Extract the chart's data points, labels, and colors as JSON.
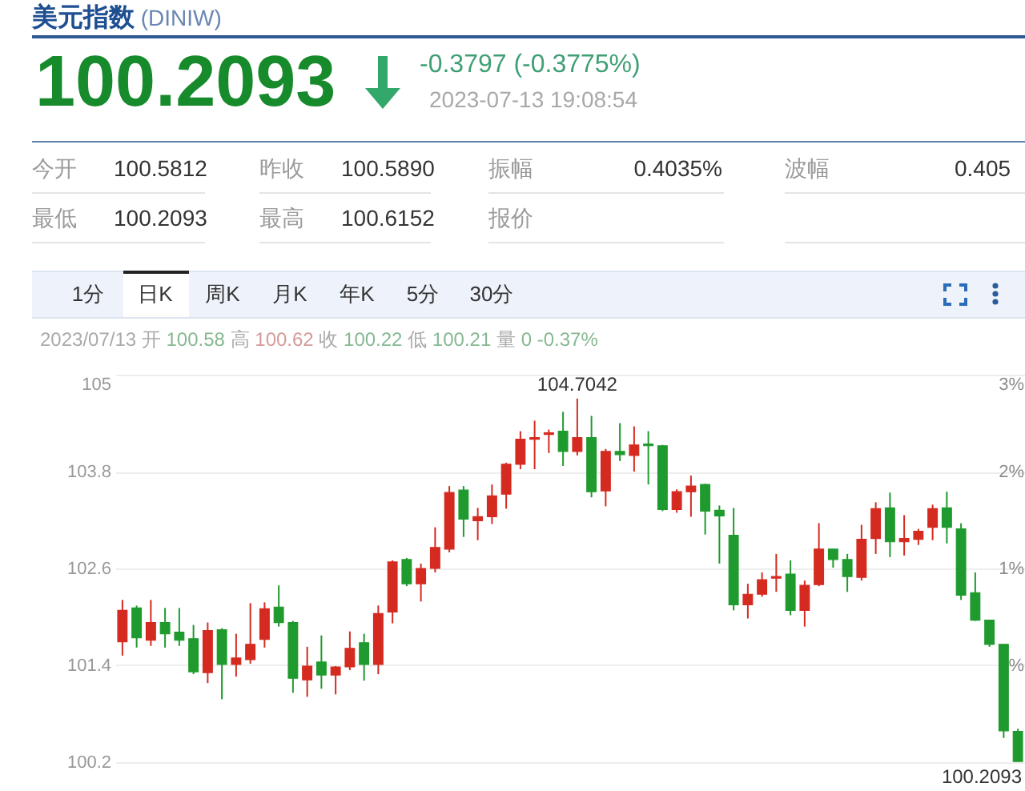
{
  "chart_data": {
    "type": "candlestick",
    "title": "美元指数 (DINIW)",
    "annotations": [
      "100.2093",
      "-0.3797 (-0.3775%)",
      "2023-07-13 19:08:54",
      "今开",
      "100.5812",
      "昨收",
      "100.5890",
      "振幅",
      "0.4035%",
      "波幅",
      "0.405",
      "最低",
      "100.2093",
      "最高",
      "100.6152",
      "报价",
      "1分",
      "日K",
      "周K",
      "月K",
      "年K",
      "5分",
      "30分",
      "2023/07/13 开 100.58 高 100.62 收 100.22 低 100.21 量 0 -0.37%",
      "100.2093",
      {
        "text": "104.7042",
        "y": 104.7042
      }
    ],
    "categories": [
      null,
      null,
      null,
      null,
      null,
      null,
      null,
      null,
      null,
      null,
      null,
      null,
      null,
      null,
      null,
      null,
      null,
      null,
      null,
      null,
      null,
      null,
      null,
      null,
      null,
      null,
      null,
      null,
      null,
      null,
      null,
      null,
      null,
      null,
      null,
      null,
      null,
      null,
      null,
      null,
      null,
      null,
      null,
      null,
      null,
      null,
      null,
      null,
      null,
      null,
      null,
      null,
      null,
      null,
      null,
      null,
      null,
      null,
      null,
      null,
      null,
      null,
      null,
      null
    ],
    "ohlc": [
      [
        101.69,
        102.21,
        101.52,
        102.08
      ],
      [
        102.11,
        102.14,
        101.62,
        101.74
      ],
      [
        101.71,
        102.21,
        101.64,
        101.93
      ],
      [
        101.93,
        102.11,
        101.62,
        101.79
      ],
      [
        101.81,
        102.11,
        101.64,
        101.71
      ],
      [
        101.73,
        101.9,
        101.29,
        101.32
      ],
      [
        101.31,
        101.93,
        101.18,
        101.83
      ],
      [
        101.84,
        101.86,
        100.98,
        101.41
      ],
      [
        101.41,
        101.79,
        101.26,
        101.49
      ],
      [
        101.47,
        102.17,
        101.42,
        101.66
      ],
      [
        101.72,
        102.18,
        101.62,
        102.1
      ],
      [
        102.12,
        102.39,
        101.88,
        101.93
      ],
      [
        101.93,
        101.95,
        101.06,
        101.24
      ],
      [
        101.22,
        101.63,
        101.01,
        101.39
      ],
      [
        101.44,
        101.77,
        101.11,
        101.28
      ],
      [
        101.28,
        101.39,
        101.04,
        101.38
      ],
      [
        101.38,
        101.82,
        101.34,
        101.61
      ],
      [
        101.68,
        101.79,
        101.21,
        101.41
      ],
      [
        101.41,
        102.14,
        101.29,
        102.04
      ],
      [
        102.06,
        102.7,
        101.92,
        102.68
      ],
      [
        102.71,
        102.73,
        102.38,
        102.41
      ],
      [
        102.41,
        102.66,
        102.19,
        102.6
      ],
      [
        102.6,
        103.11,
        102.55,
        102.86
      ],
      [
        102.84,
        103.62,
        102.8,
        103.54
      ],
      [
        103.57,
        103.62,
        102.99,
        103.21
      ],
      [
        103.19,
        103.35,
        102.95,
        103.24
      ],
      [
        103.24,
        103.64,
        103.15,
        103.5
      ],
      [
        103.52,
        103.91,
        103.34,
        103.89
      ],
      [
        103.89,
        104.3,
        103.83,
        104.2
      ],
      [
        104.2,
        104.43,
        103.83,
        104.22
      ],
      [
        104.26,
        104.32,
        104.03,
        104.28
      ],
      [
        104.3,
        104.54,
        103.87,
        104.05
      ],
      [
        104.05,
        104.7042,
        104.0,
        104.22
      ],
      [
        104.22,
        104.49,
        103.48,
        103.55
      ],
      [
        103.56,
        104.08,
        103.37,
        104.05
      ],
      [
        104.05,
        104.4,
        103.93,
        104.01
      ],
      [
        104.0,
        104.36,
        103.8,
        104.13
      ],
      [
        104.14,
        104.3,
        103.64,
        104.12
      ],
      [
        104.12,
        104.13,
        103.31,
        103.33
      ],
      [
        103.33,
        103.58,
        103.29,
        103.55
      ],
      [
        103.55,
        103.75,
        103.24,
        103.62
      ],
      [
        103.64,
        103.65,
        103.02,
        103.31
      ],
      [
        103.32,
        103.38,
        102.66,
        103.25
      ],
      [
        103.01,
        103.35,
        102.08,
        102.15
      ],
      [
        102.15,
        102.41,
        101.98,
        102.28
      ],
      [
        102.28,
        102.55,
        102.25,
        102.46
      ],
      [
        102.48,
        102.78,
        102.31,
        102.5
      ],
      [
        102.53,
        102.7,
        102.02,
        102.08
      ],
      [
        102.08,
        102.45,
        101.88,
        102.39
      ],
      [
        102.4,
        103.16,
        102.38,
        102.84
      ],
      [
        102.84,
        102.84,
        102.61,
        102.71
      ],
      [
        102.71,
        102.78,
        102.31,
        102.5
      ],
      [
        102.49,
        103.14,
        102.45,
        102.96
      ],
      [
        102.97,
        103.42,
        102.78,
        103.34
      ],
      [
        103.35,
        103.54,
        102.74,
        102.93
      ],
      [
        102.93,
        103.26,
        102.76,
        102.97
      ],
      [
        102.96,
        103.09,
        102.89,
        103.06
      ],
      [
        103.11,
        103.39,
        102.95,
        103.34
      ],
      [
        103.35,
        103.55,
        102.91,
        103.11
      ],
      [
        103.09,
        103.16,
        102.21,
        102.27
      ],
      [
        102.3,
        102.55,
        101.95,
        101.96
      ],
      [
        101.96,
        101.96,
        101.63,
        101.66
      ],
      [
        101.66,
        101.66,
        100.5,
        100.589
      ],
      [
        100.5812,
        100.6152,
        100.2093,
        100.2093
      ]
    ],
    "colors": [
      "#d42a20",
      "#1f9a2e",
      "#d42a20",
      "#1f9a2e",
      "#1f9a2e",
      "#1f9a2e",
      "#d42a20",
      "#1f9a2e",
      "#d42a20",
      "#d42a20",
      "#d42a20",
      "#1f9a2e",
      "#1f9a2e",
      "#d42a20",
      "#1f9a2e",
      "#d42a20",
      "#d42a20",
      "#1f9a2e",
      "#d42a20",
      "#d42a20",
      "#1f9a2e",
      "#d42a20",
      "#d42a20",
      "#d42a20",
      "#1f9a2e",
      "#d42a20",
      "#d42a20",
      "#d42a20",
      "#d42a20",
      "#d42a20",
      "#d42a20",
      "#1f9a2e",
      "#d42a20",
      "#1f9a2e",
      "#d42a20",
      "#1f9a2e",
      "#d42a20",
      "#1f9a2e",
      "#1f9a2e",
      "#d42a20",
      "#d42a20",
      "#1f9a2e",
      "#1f9a2e",
      "#1f9a2e",
      "#d42a20",
      "#d42a20",
      "#d42a20",
      "#1f9a2e",
      "#d42a20",
      "#d42a20",
      "#1f9a2e",
      "#1f9a2e",
      "#d42a20",
      "#d42a20",
      "#1f9a2e",
      "#d42a20",
      "#d42a20",
      "#d42a20",
      "#1f9a2e",
      "#1f9a2e",
      "#1f9a2e",
      "#1f9a2e",
      "#1f9a2e",
      "#1f9a2e"
    ],
    "ylim": [
      100.2,
      105
    ],
    "yticks": [
      100.2,
      101.4,
      102.6,
      103.8,
      105
    ],
    "y2lim": [
      -1,
      3
    ],
    "y2ticks": [
      {
        "value": 0,
        "label": "%"
      },
      {
        "value": 1,
        "label": "1%"
      },
      {
        "value": 2,
        "label": "2%"
      },
      {
        "value": 3,
        "label": "3%"
      }
    ],
    "grid": "y"
  }
}
